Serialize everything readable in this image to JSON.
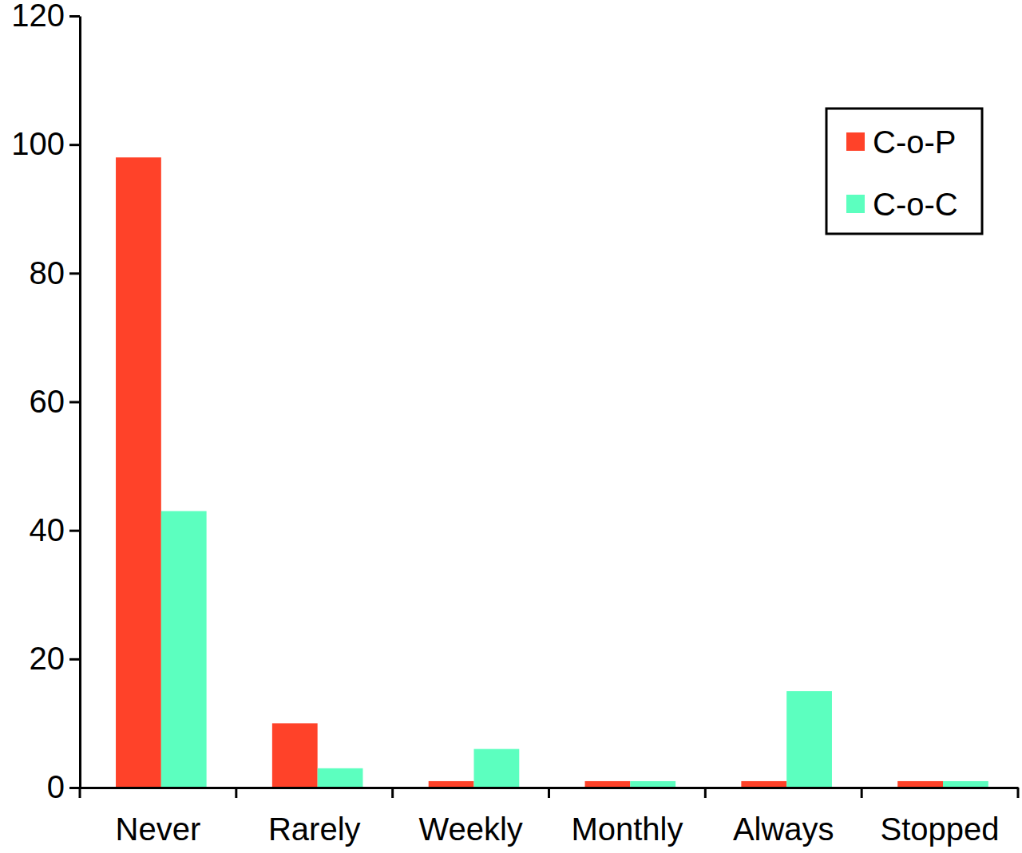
{
  "chart_data": {
    "type": "bar",
    "categories": [
      "Never",
      "Rarely",
      "Weekly",
      "Monthly",
      "Always",
      "Stopped"
    ],
    "series": [
      {
        "name": "C-o-P",
        "color": "#ff4229",
        "values": [
          98,
          10,
          1,
          1,
          1,
          1
        ]
      },
      {
        "name": "C-o-C",
        "color": "#5cffbf",
        "values": [
          43,
          3,
          6,
          1,
          15,
          1
        ]
      }
    ],
    "ylim": [
      0,
      120
    ],
    "yticks": [
      0,
      20,
      40,
      60,
      80,
      100,
      120
    ],
    "grid": false,
    "legend": "upper right"
  }
}
